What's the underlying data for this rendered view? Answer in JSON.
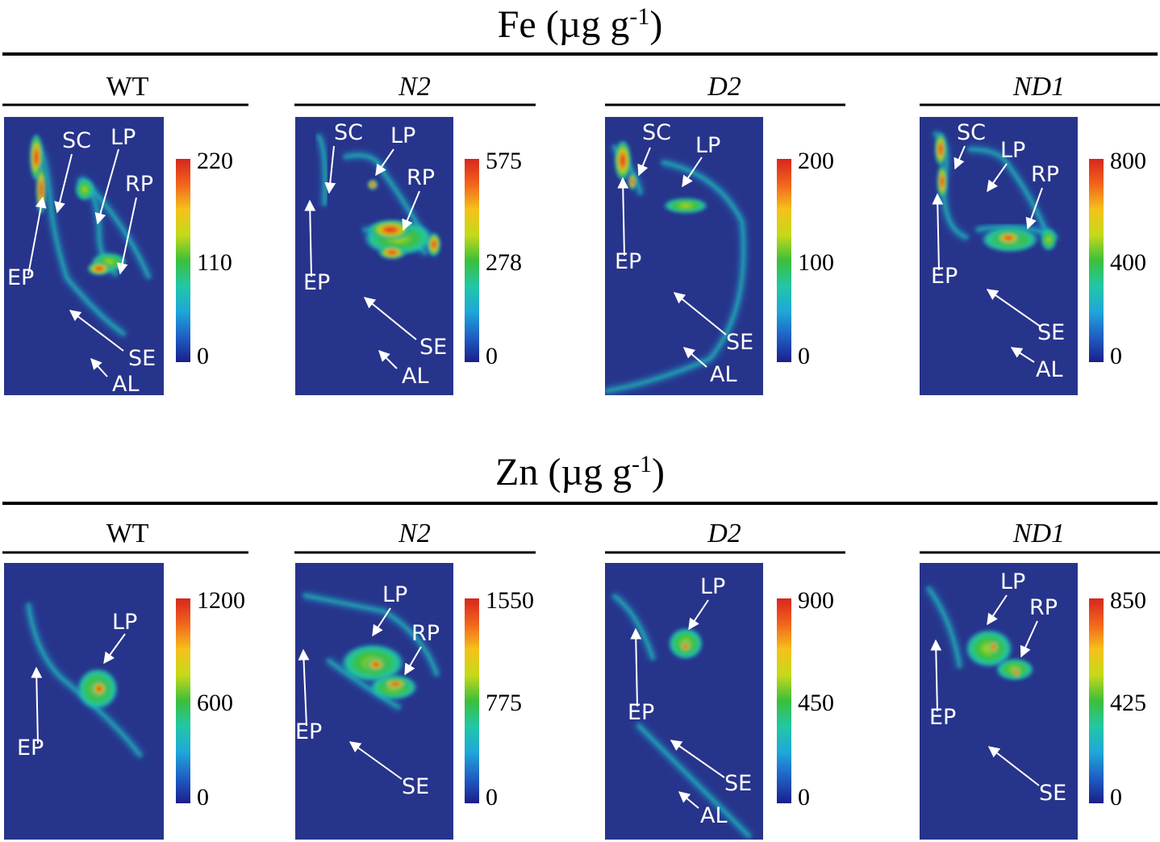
{
  "figure": {
    "rows": [
      {
        "element": "Fe",
        "unit": "(µg g",
        "unit_exp": "-1",
        "unit_close": ")",
        "panels": [
          {
            "genotype": "WT",
            "italic": false,
            "scale": {
              "max": "220",
              "mid": "110",
              "min": "0"
            },
            "labels": [
              "SC",
              "LP",
              "RP",
              "EP",
              "SE",
              "AL"
            ]
          },
          {
            "genotype": "N2",
            "italic": true,
            "scale": {
              "max": "575",
              "mid": "278",
              "min": "0"
            },
            "labels": [
              "SC",
              "LP",
              "RP",
              "EP",
              "SE",
              "AL"
            ]
          },
          {
            "genotype": "D2",
            "italic": true,
            "scale": {
              "max": "200",
              "mid": "100",
              "min": "0"
            },
            "labels": [
              "SC",
              "LP",
              "EP",
              "SE",
              "AL"
            ]
          },
          {
            "genotype": "ND1",
            "italic": true,
            "scale": {
              "max": "800",
              "mid": "400",
              "min": "0"
            },
            "labels": [
              "SC",
              "LP",
              "RP",
              "EP",
              "SE",
              "AL"
            ]
          }
        ]
      },
      {
        "element": "Zn",
        "unit": "(µg g",
        "unit_exp": "-1",
        "unit_close": ")",
        "panels": [
          {
            "genotype": "WT",
            "italic": false,
            "scale": {
              "max": "1200",
              "mid": "600",
              "min": "0"
            },
            "labels": [
              "LP",
              "EP"
            ]
          },
          {
            "genotype": "N2",
            "italic": true,
            "scale": {
              "max": "1550",
              "mid": "775",
              "min": "0"
            },
            "labels": [
              "LP",
              "RP",
              "EP",
              "SE"
            ]
          },
          {
            "genotype": "D2",
            "italic": true,
            "scale": {
              "max": "900",
              "mid": "450",
              "min": "0"
            },
            "labels": [
              "LP",
              "EP",
              "SE",
              "AL"
            ]
          },
          {
            "genotype": "ND1",
            "italic": true,
            "scale": {
              "max": "850",
              "mid": "425",
              "min": "0"
            },
            "labels": [
              "LP",
              "RP",
              "EP",
              "SE"
            ]
          }
        ]
      }
    ],
    "colors": {
      "background_map": "#27348b",
      "jet": [
        "#1c1e8a",
        "#1f5fc4",
        "#1fa7d9",
        "#22c7a5",
        "#3bbf3b",
        "#c5d91a",
        "#f5c21b",
        "#f2641c",
        "#d8261f"
      ]
    }
  }
}
